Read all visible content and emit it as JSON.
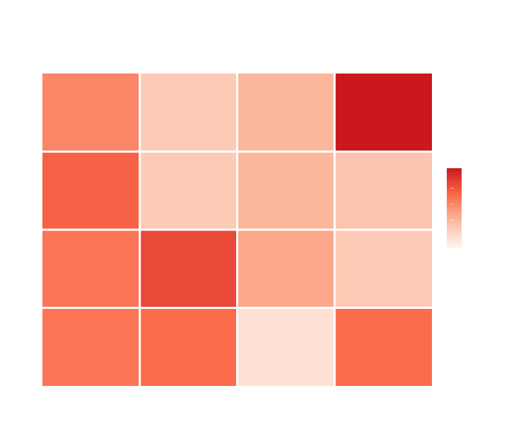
{
  "chart_data": {
    "type": "heatmap",
    "title": "",
    "xlabel": "",
    "ylabel": "",
    "rows": 4,
    "cols": 4,
    "values": [
      [
        0.55,
        0.25,
        0.35,
        1.0
      ],
      [
        0.7,
        0.25,
        0.35,
        0.28
      ],
      [
        0.62,
        0.8,
        0.42,
        0.25
      ],
      [
        0.62,
        0.66,
        0.12,
        0.66
      ]
    ],
    "value_range": [
      0,
      1
    ],
    "colorscale": [
      "#fff5f0",
      "#fcbba1",
      "#fb6a4a",
      "#cb181d"
    ],
    "grid_color": "#ffffff",
    "legend": {
      "placement": "right",
      "type": "colorbar"
    }
  }
}
